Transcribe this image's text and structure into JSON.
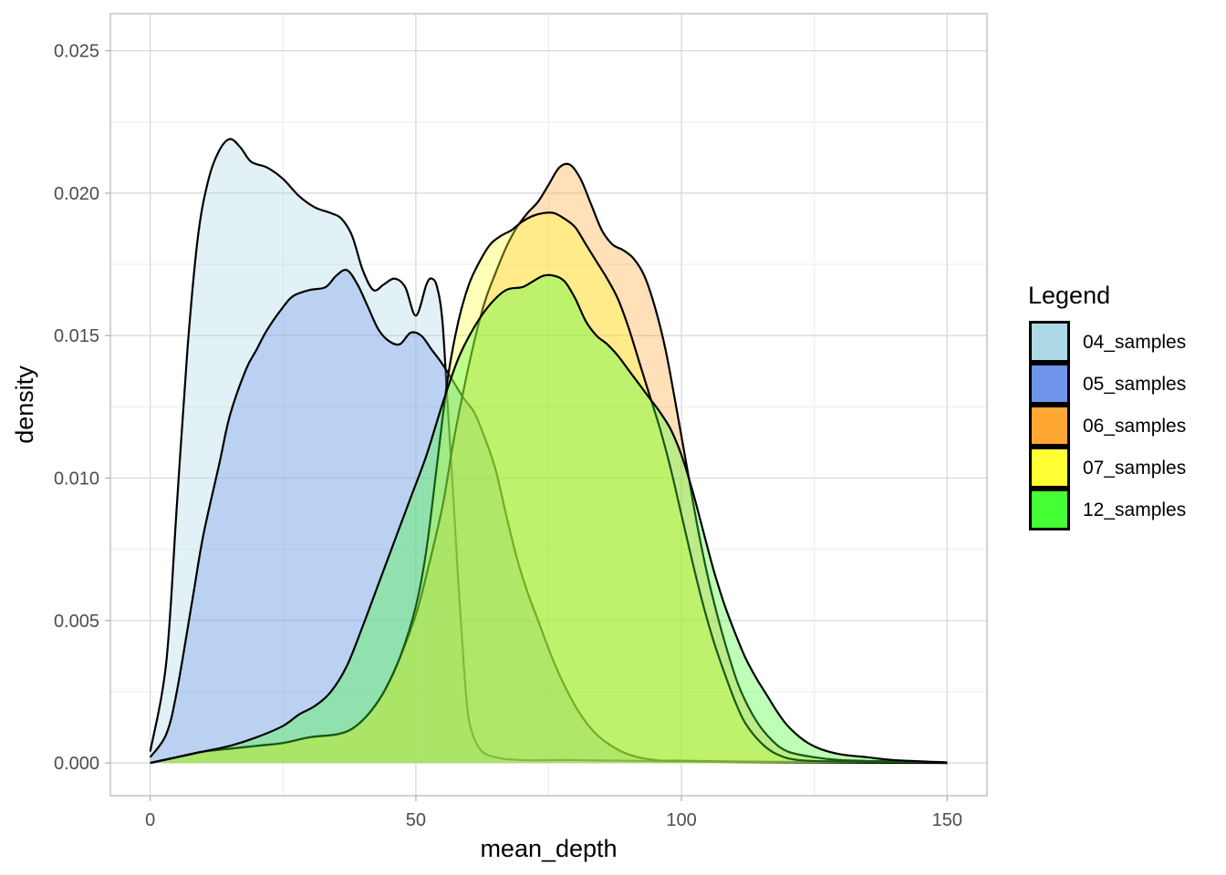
{
  "chart_data": {
    "type": "area",
    "subtype": "density",
    "title": "",
    "xlabel": "mean_depth",
    "ylabel": "density",
    "xlim": [
      -7.5,
      157.5
    ],
    "ylim": [
      -0.00115,
      0.0263
    ],
    "x_ticks": [
      0,
      50,
      100,
      150
    ],
    "x_tick_labels": [
      "0",
      "50",
      "100",
      "150"
    ],
    "y_ticks": [
      0,
      0.005,
      0.01,
      0.015,
      0.02,
      0.025
    ],
    "y_tick_labels": [
      "0.000",
      "0.005",
      "0.010",
      "0.015",
      "0.020",
      "0.025"
    ],
    "grid": true,
    "legend": {
      "title": "Legend",
      "position": "right"
    },
    "series": [
      {
        "name": "04_samples",
        "color": "#ADD8E6",
        "fill_opacity": 0.35,
        "points": [
          [
            0,
            0.0004
          ],
          [
            3,
            0.0035
          ],
          [
            5,
            0.009
          ],
          [
            7,
            0.0145
          ],
          [
            9,
            0.0185
          ],
          [
            11,
            0.0205
          ],
          [
            13,
            0.0215
          ],
          [
            15,
            0.0219
          ],
          [
            17,
            0.0216
          ],
          [
            19,
            0.0211
          ],
          [
            22,
            0.0209
          ],
          [
            25,
            0.0205
          ],
          [
            28,
            0.0199
          ],
          [
            31,
            0.0195
          ],
          [
            34,
            0.0193
          ],
          [
            36,
            0.0191
          ],
          [
            38,
            0.0185
          ],
          [
            40,
            0.0173
          ],
          [
            42,
            0.0166
          ],
          [
            44,
            0.0168
          ],
          [
            46,
            0.017
          ],
          [
            48,
            0.0167
          ],
          [
            50,
            0.0157
          ],
          [
            52,
            0.0168
          ],
          [
            53,
            0.017
          ],
          [
            54,
            0.0167
          ],
          [
            55,
            0.0155
          ],
          [
            56,
            0.0125
          ],
          [
            57,
            0.0095
          ],
          [
            58,
            0.0063
          ],
          [
            59,
            0.0035
          ],
          [
            60,
            0.0015
          ],
          [
            62,
            0.0005
          ],
          [
            65,
            0.0002
          ],
          [
            70,
            0.0001
          ],
          [
            80,
            0.0001
          ],
          [
            100,
            5e-05
          ],
          [
            120,
            2e-05
          ],
          [
            150,
            0
          ]
        ]
      },
      {
        "name": "05_samples",
        "color": "#6F94EA",
        "fill_opacity": 0.35,
        "points": [
          [
            0,
            0.0002
          ],
          [
            3,
            0.001
          ],
          [
            5,
            0.0025
          ],
          [
            8,
            0.0058
          ],
          [
            10,
            0.008
          ],
          [
            13,
            0.0105
          ],
          [
            15,
            0.0122
          ],
          [
            18,
            0.0138
          ],
          [
            20,
            0.0145
          ],
          [
            22,
            0.0152
          ],
          [
            25,
            0.016
          ],
          [
            27,
            0.0164
          ],
          [
            30,
            0.0166
          ],
          [
            33,
            0.0167
          ],
          [
            35,
            0.0171
          ],
          [
            37,
            0.0173
          ],
          [
            39,
            0.0168
          ],
          [
            41,
            0.016
          ],
          [
            43,
            0.0152
          ],
          [
            45,
            0.0148
          ],
          [
            47,
            0.0147
          ],
          [
            49,
            0.0151
          ],
          [
            51,
            0.015
          ],
          [
            53,
            0.0145
          ],
          [
            55,
            0.014
          ],
          [
            57,
            0.0134
          ],
          [
            59,
            0.0128
          ],
          [
            61,
            0.0123
          ],
          [
            63,
            0.0114
          ],
          [
            65,
            0.0103
          ],
          [
            67,
            0.0087
          ],
          [
            69,
            0.0072
          ],
          [
            71,
            0.006
          ],
          [
            73,
            0.005
          ],
          [
            75,
            0.004
          ],
          [
            77,
            0.0031
          ],
          [
            80,
            0.002
          ],
          [
            83,
            0.0012
          ],
          [
            86,
            0.0007
          ],
          [
            90,
            0.0003
          ],
          [
            95,
            0.0001
          ],
          [
            100,
            8e-05
          ],
          [
            110,
            5e-05
          ],
          [
            130,
            2e-05
          ],
          [
            150,
            0
          ]
        ]
      },
      {
        "name": "06_samples",
        "color": "#FFA733",
        "fill_opacity": 0.35,
        "points": [
          [
            0,
            0
          ],
          [
            5,
            0.0002
          ],
          [
            10,
            0.0004
          ],
          [
            15,
            0.0005
          ],
          [
            20,
            0.0006
          ],
          [
            25,
            0.0007
          ],
          [
            30,
            0.0009
          ],
          [
            35,
            0.001
          ],
          [
            38,
            0.0012
          ],
          [
            41,
            0.0017
          ],
          [
            44,
            0.0025
          ],
          [
            47,
            0.0037
          ],
          [
            50,
            0.0052
          ],
          [
            52,
            0.0066
          ],
          [
            55,
            0.009
          ],
          [
            57,
            0.0112
          ],
          [
            59,
            0.0131
          ],
          [
            61,
            0.0148
          ],
          [
            63,
            0.0162
          ],
          [
            65,
            0.0172
          ],
          [
            67,
            0.0181
          ],
          [
            69,
            0.0188
          ],
          [
            71,
            0.0193
          ],
          [
            73,
            0.0197
          ],
          [
            75,
            0.0203
          ],
          [
            77,
            0.0209
          ],
          [
            79,
            0.021
          ],
          [
            81,
            0.0205
          ],
          [
            83,
            0.0196
          ],
          [
            85,
            0.0187
          ],
          [
            87,
            0.0182
          ],
          [
            89,
            0.018
          ],
          [
            91,
            0.0177
          ],
          [
            93,
            0.0171
          ],
          [
            95,
            0.016
          ],
          [
            97,
            0.0145
          ],
          [
            99,
            0.0125
          ],
          [
            101,
            0.0104
          ],
          [
            103,
            0.0083
          ],
          [
            105,
            0.0065
          ],
          [
            107,
            0.005
          ],
          [
            109,
            0.0037
          ],
          [
            111,
            0.0026
          ],
          [
            114,
            0.0015
          ],
          [
            117,
            0.0008
          ],
          [
            120,
            0.0004
          ],
          [
            125,
            0.0002
          ],
          [
            130,
            0.0001
          ],
          [
            140,
            5e-05
          ],
          [
            150,
            0
          ]
        ]
      },
      {
        "name": "07_samples",
        "color": "#FFFF33",
        "fill_opacity": 0.35,
        "points": [
          [
            0,
            0
          ],
          [
            5,
            0.0002
          ],
          [
            10,
            0.0004
          ],
          [
            15,
            0.0005
          ],
          [
            20,
            0.0006
          ],
          [
            25,
            0.0007
          ],
          [
            30,
            0.0009
          ],
          [
            35,
            0.001
          ],
          [
            38,
            0.0012
          ],
          [
            41,
            0.0017
          ],
          [
            44,
            0.0025
          ],
          [
            47,
            0.0037
          ],
          [
            50,
            0.0055
          ],
          [
            52,
            0.0075
          ],
          [
            54,
            0.0105
          ],
          [
            56,
            0.0135
          ],
          [
            58,
            0.0155
          ],
          [
            60,
            0.0168
          ],
          [
            62,
            0.0176
          ],
          [
            64,
            0.0182
          ],
          [
            66,
            0.0185
          ],
          [
            68,
            0.0187
          ],
          [
            70,
            0.019
          ],
          [
            72,
            0.0192
          ],
          [
            74,
            0.0193
          ],
          [
            76,
            0.0193
          ],
          [
            78,
            0.0191
          ],
          [
            80,
            0.0188
          ],
          [
            82,
            0.0182
          ],
          [
            84,
            0.0176
          ],
          [
            86,
            0.017
          ],
          [
            88,
            0.0163
          ],
          [
            90,
            0.0153
          ],
          [
            92,
            0.0141
          ],
          [
            94,
            0.0129
          ],
          [
            96,
            0.0117
          ],
          [
            98,
            0.0103
          ],
          [
            100,
            0.0087
          ],
          [
            102,
            0.0071
          ],
          [
            104,
            0.0056
          ],
          [
            106,
            0.0043
          ],
          [
            108,
            0.0032
          ],
          [
            110,
            0.0022
          ],
          [
            112,
            0.0014
          ],
          [
            115,
            0.0007
          ],
          [
            118,
            0.0003
          ],
          [
            122,
            0.0001
          ],
          [
            130,
            5e-05
          ],
          [
            150,
            0
          ]
        ]
      },
      {
        "name": "12_samples",
        "color": "#44FF33",
        "fill_opacity": 0.35,
        "points": [
          [
            0,
            0
          ],
          [
            5,
            0.0002
          ],
          [
            10,
            0.0004
          ],
          [
            15,
            0.0006
          ],
          [
            20,
            0.0009
          ],
          [
            25,
            0.0013
          ],
          [
            28,
            0.0017
          ],
          [
            31,
            0.002
          ],
          [
            34,
            0.0025
          ],
          [
            37,
            0.0034
          ],
          [
            40,
            0.0048
          ],
          [
            43,
            0.0063
          ],
          [
            46,
            0.0078
          ],
          [
            49,
            0.0093
          ],
          [
            52,
            0.0108
          ],
          [
            55,
            0.0126
          ],
          [
            58,
            0.0142
          ],
          [
            61,
            0.0153
          ],
          [
            64,
            0.0161
          ],
          [
            67,
            0.0166
          ],
          [
            70,
            0.0167
          ],
          [
            72,
            0.0169
          ],
          [
            74,
            0.0171
          ],
          [
            76,
            0.0171
          ],
          [
            78,
            0.0169
          ],
          [
            80,
            0.0163
          ],
          [
            82,
            0.0155
          ],
          [
            84,
            0.015
          ],
          [
            86,
            0.0147
          ],
          [
            88,
            0.0143
          ],
          [
            90,
            0.0138
          ],
          [
            92,
            0.0133
          ],
          [
            94,
            0.0128
          ],
          [
            96,
            0.0123
          ],
          [
            98,
            0.0117
          ],
          [
            100,
            0.0108
          ],
          [
            102,
            0.0096
          ],
          [
            104,
            0.0082
          ],
          [
            106,
            0.0068
          ],
          [
            108,
            0.0056
          ],
          [
            110,
            0.0046
          ],
          [
            112,
            0.0037
          ],
          [
            114,
            0.003
          ],
          [
            116,
            0.0024
          ],
          [
            118,
            0.0018
          ],
          [
            120,
            0.0013
          ],
          [
            123,
            0.0008
          ],
          [
            126,
            0.0005
          ],
          [
            130,
            0.0003
          ],
          [
            135,
            0.0002
          ],
          [
            140,
            0.0001
          ],
          [
            150,
            2e-05
          ]
        ]
      }
    ]
  }
}
